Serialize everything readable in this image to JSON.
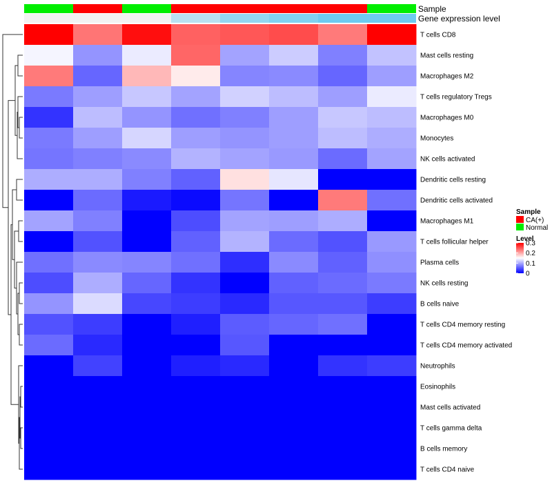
{
  "chart_data": {
    "type": "heatmap",
    "title": "",
    "color_scale": {
      "low": "#0000FF",
      "mid": "#FFFFFF",
      "high": "#FF0000",
      "mid_value": 0.15,
      "range": [
        0,
        0.3
      ]
    },
    "annotation_tracks": [
      {
        "name": "Sample",
        "values": [
          "Normal",
          "CA(+)",
          "Normal",
          "CA(+)",
          "CA(+)",
          "CA(+)",
          "CA(+)",
          "Normal"
        ]
      },
      {
        "name": "Gene expression level",
        "values": [
          0.16,
          0.16,
          0.16,
          0.13,
          0.11,
          0.1,
          0.09,
          0.09
        ]
      }
    ],
    "rows": [
      {
        "label": "T cells CD8",
        "values": [
          0.3,
          0.231,
          0.292,
          0.243,
          0.249,
          0.255,
          0.228,
          0.3
        ]
      },
      {
        "label": "Mast cells resting",
        "values": [
          0.144,
          0.087,
          0.138,
          0.24,
          0.096,
          0.12,
          0.075,
          0.114
        ]
      },
      {
        "label": "Macrophages M2",
        "values": [
          0.228,
          0.06,
          0.192,
          0.162,
          0.078,
          0.081,
          0.06,
          0.093
        ]
      },
      {
        "label": "T cells regulatory  Tregs",
        "values": [
          0.072,
          0.093,
          0.117,
          0.096,
          0.123,
          0.111,
          0.093,
          0.138
        ]
      },
      {
        "label": "Macrophages M0",
        "values": [
          0.03,
          0.111,
          0.087,
          0.066,
          0.075,
          0.093,
          0.117,
          0.111
        ]
      },
      {
        "label": "Monocytes",
        "values": [
          0.072,
          0.093,
          0.126,
          0.093,
          0.087,
          0.093,
          0.111,
          0.102
        ]
      },
      {
        "label": "NK cells activated",
        "values": [
          0.069,
          0.075,
          0.081,
          0.105,
          0.096,
          0.09,
          0.063,
          0.096
        ]
      },
      {
        "label": "Dendritic cells resting",
        "values": [
          0.102,
          0.102,
          0.075,
          0.057,
          0.168,
          0.135,
          0.0,
          0.0
        ]
      },
      {
        "label": "Dendritic cells activated",
        "values": [
          0.0,
          0.063,
          0.015,
          0.006,
          0.069,
          0.0,
          0.228,
          0.066
        ]
      },
      {
        "label": "Macrophages M1",
        "values": [
          0.096,
          0.075,
          0.0,
          0.045,
          0.096,
          0.093,
          0.102,
          0.0
        ]
      },
      {
        "label": "T cells follicular helper",
        "values": [
          0.0,
          0.048,
          0.0,
          0.057,
          0.105,
          0.063,
          0.048,
          0.09
        ]
      },
      {
        "label": "Plasma cells",
        "values": [
          0.066,
          0.081,
          0.078,
          0.066,
          0.027,
          0.081,
          0.057,
          0.084
        ]
      },
      {
        "label": "NK cells resting",
        "values": [
          0.045,
          0.102,
          0.06,
          0.03,
          0.0,
          0.057,
          0.063,
          0.072
        ]
      },
      {
        "label": "B cells naive",
        "values": [
          0.087,
          0.129,
          0.042,
          0.036,
          0.024,
          0.051,
          0.051,
          0.036
        ]
      },
      {
        "label": "T cells CD4 memory resting",
        "values": [
          0.048,
          0.036,
          0.0,
          0.018,
          0.054,
          0.06,
          0.066,
          0.0
        ]
      },
      {
        "label": "T cells CD4 memory activated",
        "values": [
          0.063,
          0.024,
          0.0,
          0.0,
          0.051,
          0.0,
          0.0,
          0.0
        ]
      },
      {
        "label": "Neutrophils",
        "values": [
          0.0,
          0.039,
          0.0,
          0.018,
          0.024,
          0.0,
          0.03,
          0.036
        ]
      },
      {
        "label": "Eosinophils",
        "values": [
          0.0,
          0.0,
          0.0,
          0.0,
          0.0,
          0.0,
          0.0,
          0.0
        ]
      },
      {
        "label": "Mast cells activated",
        "values": [
          0.0,
          0.0,
          0.0,
          0.0,
          0.0,
          0.0,
          0.0,
          0.0
        ]
      },
      {
        "label": "T cells gamma delta",
        "values": [
          0.0,
          0.0,
          0.0,
          0.0,
          0.0,
          0.0,
          0.0,
          0.0
        ]
      },
      {
        "label": "B cells memory",
        "values": [
          0.0,
          0.0,
          0.0,
          0.0,
          0.0,
          0.0,
          0.0,
          0.0
        ]
      },
      {
        "label": "T cells CD4 naive",
        "values": [
          0.0,
          0.0,
          0.0,
          0.0,
          0.0,
          0.0,
          0.0,
          0.0
        ]
      }
    ],
    "legend": {
      "sample_title": "Sample",
      "sample_items": [
        {
          "label": "CA(+)",
          "color": "#FF0000"
        },
        {
          "label": "Normal",
          "color": "#00EE00"
        }
      ],
      "level_title": "Level",
      "level_ticks": [
        "0.3",
        "0.2",
        "0.1",
        "0"
      ],
      "level_tick_values": [
        0.3,
        0.2,
        0.1,
        0
      ]
    },
    "annotation_colors": {
      "Normal": "#00EE00",
      "CA(+)": "#FF0000",
      "gene_low": "#6ECBF0",
      "gene_high": "#F2F2F2"
    }
  }
}
